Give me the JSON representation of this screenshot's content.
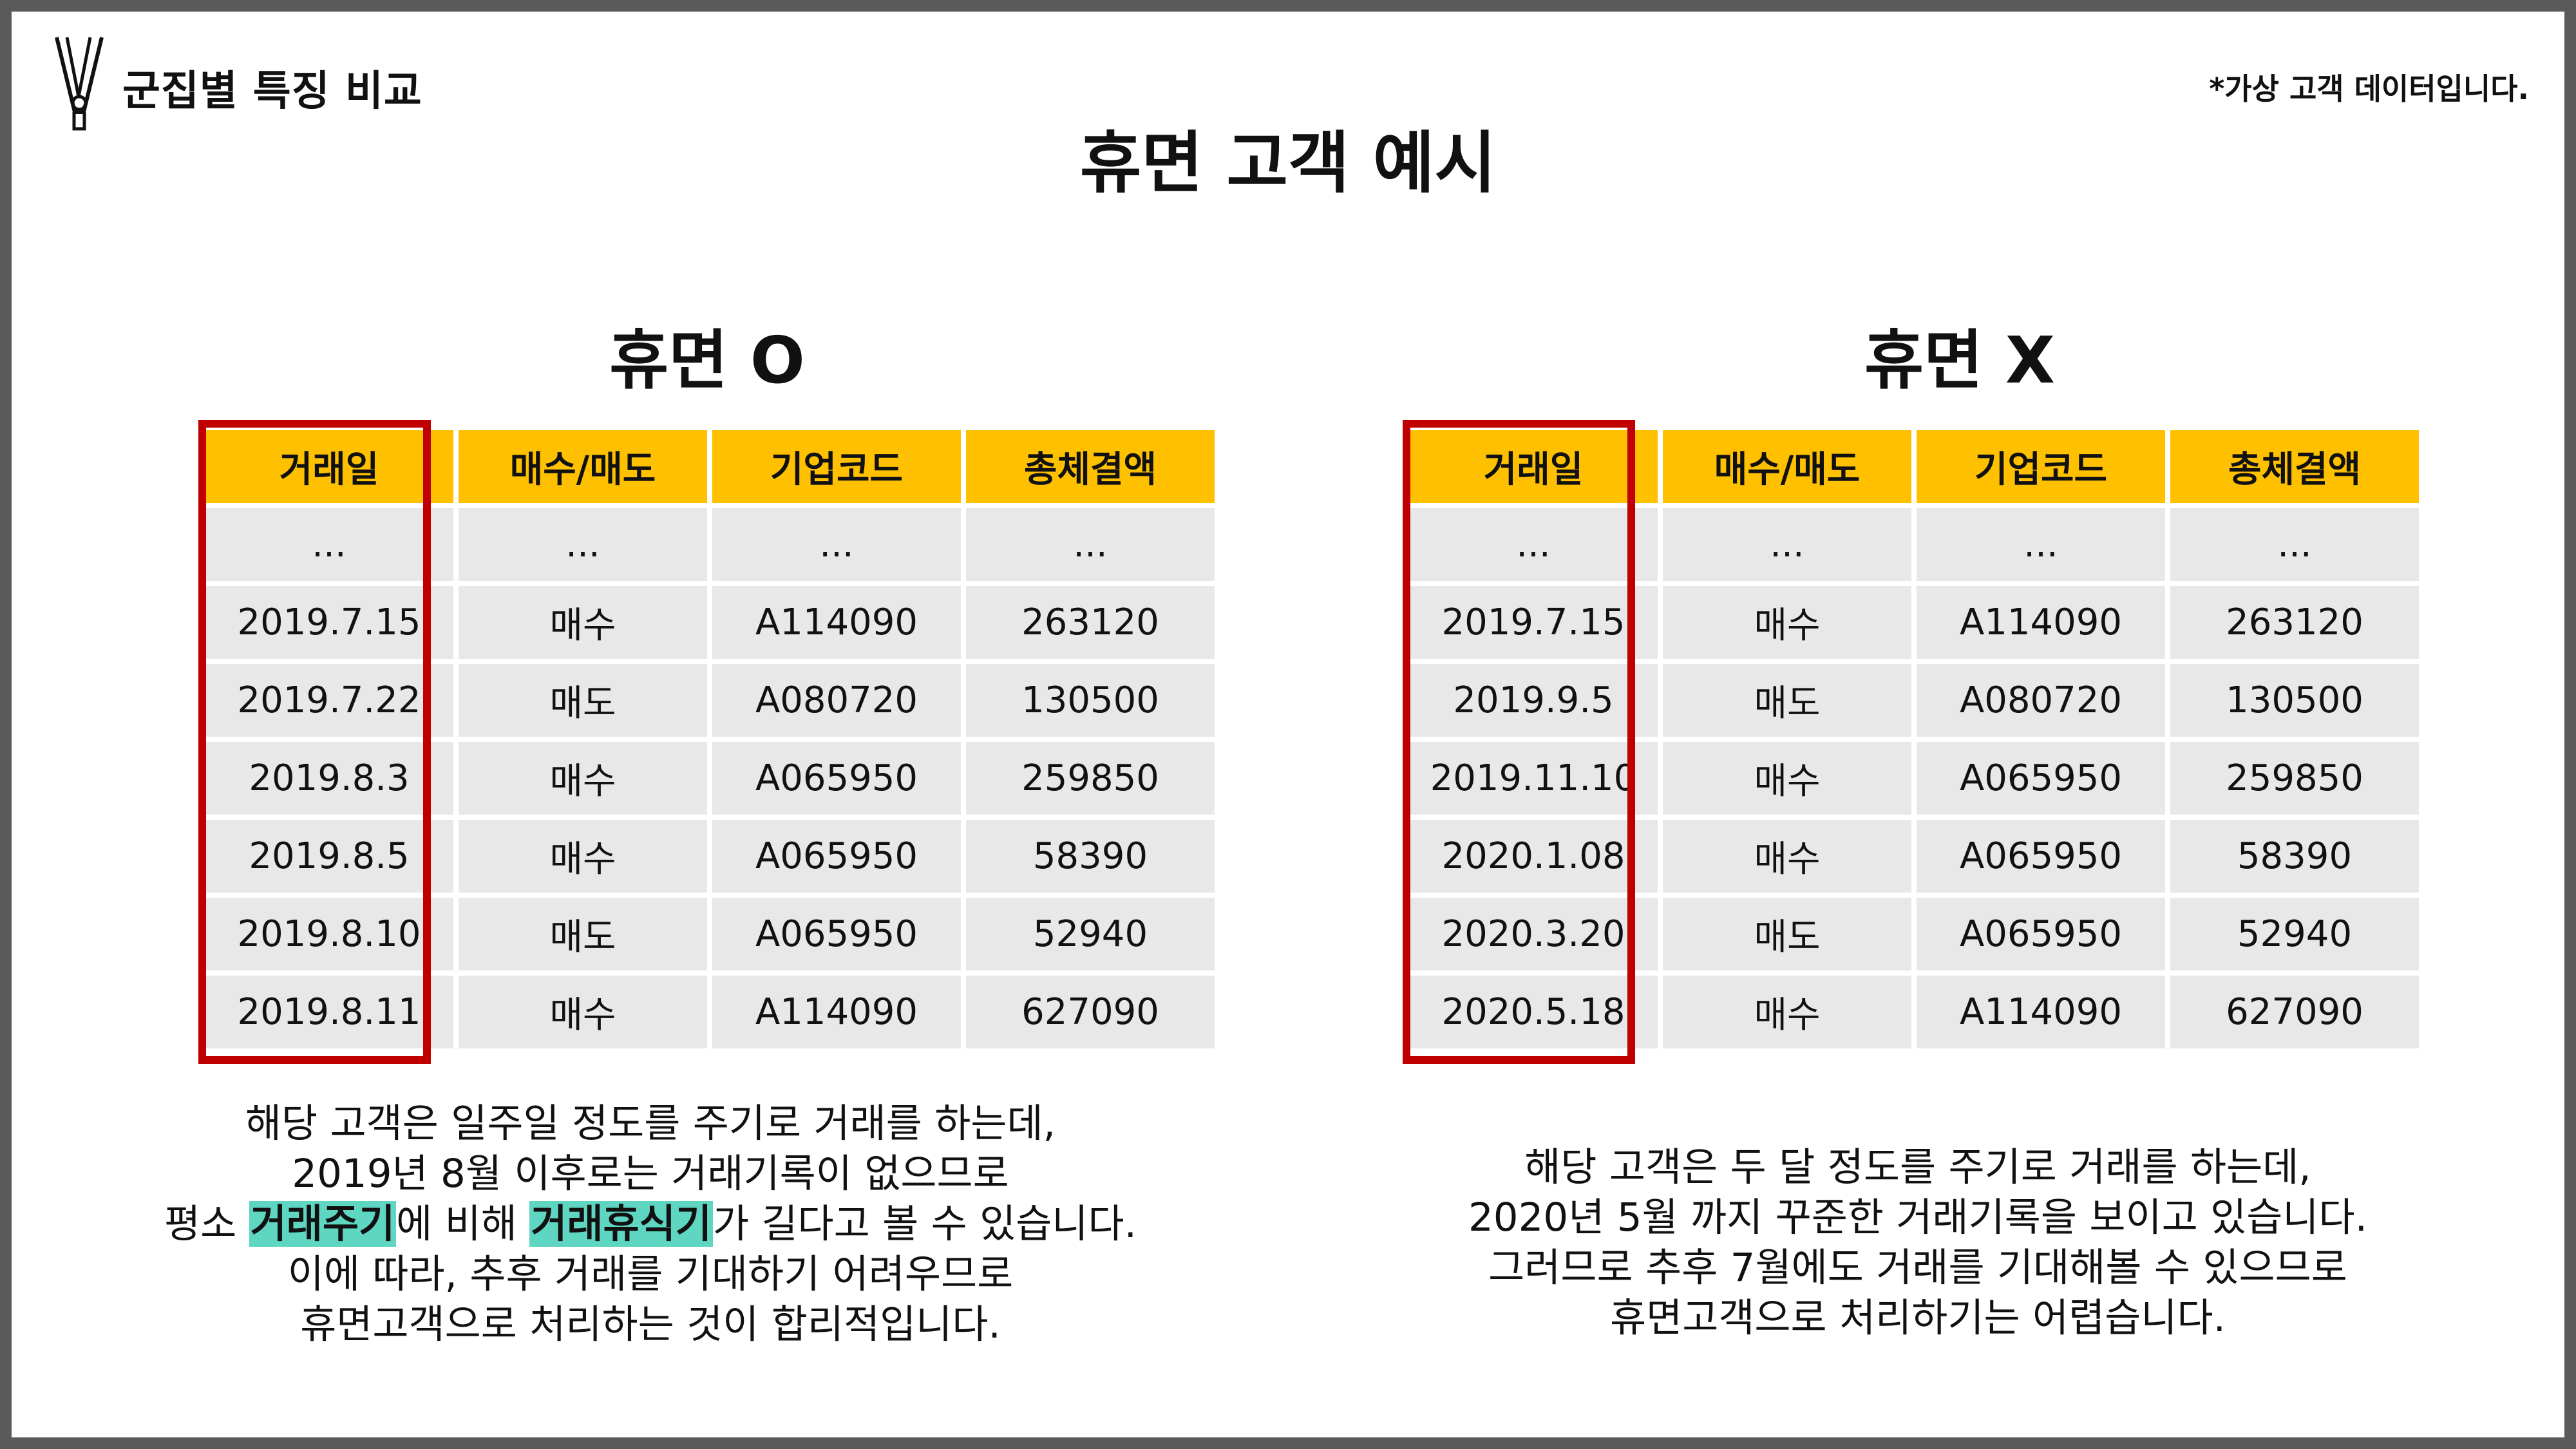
{
  "header": {
    "section_label": "군집별 특징 비교",
    "disclaimer": "*가상 고객 데이터입니다.",
    "logo_icon": "clothespin-icon"
  },
  "main_title": "휴면 고객 예시",
  "columns": [
    "거래일",
    "매수/매도",
    "기업코드",
    "총체결액"
  ],
  "colors": {
    "header_fill": "#ffc000",
    "cell_fill": "#e8e8e8",
    "highlight_border": "#c00000",
    "text_highlight": "#5fd6c2"
  },
  "left": {
    "title": "휴면 O",
    "rows": [
      [
        "...",
        "...",
        "...",
        "..."
      ],
      [
        "2019.7.15",
        "매수",
        "A114090",
        "263120"
      ],
      [
        "2019.7.22",
        "매도",
        "A080720",
        "130500"
      ],
      [
        "2019.8.3",
        "매수",
        "A065950",
        "259850"
      ],
      [
        "2019.8.5",
        "매수",
        "A065950",
        "58390"
      ],
      [
        "2019.8.10",
        "매도",
        "A065950",
        "52940"
      ],
      [
        "2019.8.11",
        "매수",
        "A114090",
        "627090"
      ]
    ],
    "desc": {
      "line1": "해당 고객은 일주일 정도를 주기로 거래를 하는데,",
      "line2": "2019년 8월 이후로는 거래기록이 없으므로",
      "line3_a": "평소 ",
      "line3_hl1": "거래주기",
      "line3_b": "에 비해 ",
      "line3_hl2": "거래휴식기",
      "line3_c": "가 길다고 볼 수 있습니다.",
      "line4": "이에 따라, 추후 거래를 기대하기 어려우므로",
      "line5": "휴면고객으로 처리하는 것이 합리적입니다."
    }
  },
  "right": {
    "title": "휴면 X",
    "rows": [
      [
        "...",
        "...",
        "...",
        "..."
      ],
      [
        "2019.7.15",
        "매수",
        "A114090",
        "263120"
      ],
      [
        "2019.9.5",
        "매도",
        "A080720",
        "130500"
      ],
      [
        "2019.11.10",
        "매수",
        "A065950",
        "259850"
      ],
      [
        "2020.1.08",
        "매수",
        "A065950",
        "58390"
      ],
      [
        "2020.3.20",
        "매도",
        "A065950",
        "52940"
      ],
      [
        "2020.5.18",
        "매수",
        "A114090",
        "627090"
      ]
    ],
    "desc": {
      "line1": "해당 고객은 두 달 정도를 주기로 거래를 하는데,",
      "line2": "2020년 5월 까지 꾸준한 거래기록을 보이고 있습니다.",
      "line3": "그러므로 추후 7월에도 거래를 기대해볼 수 있으므로",
      "line4": "휴면고객으로 처리하기는 어렵습니다."
    }
  }
}
